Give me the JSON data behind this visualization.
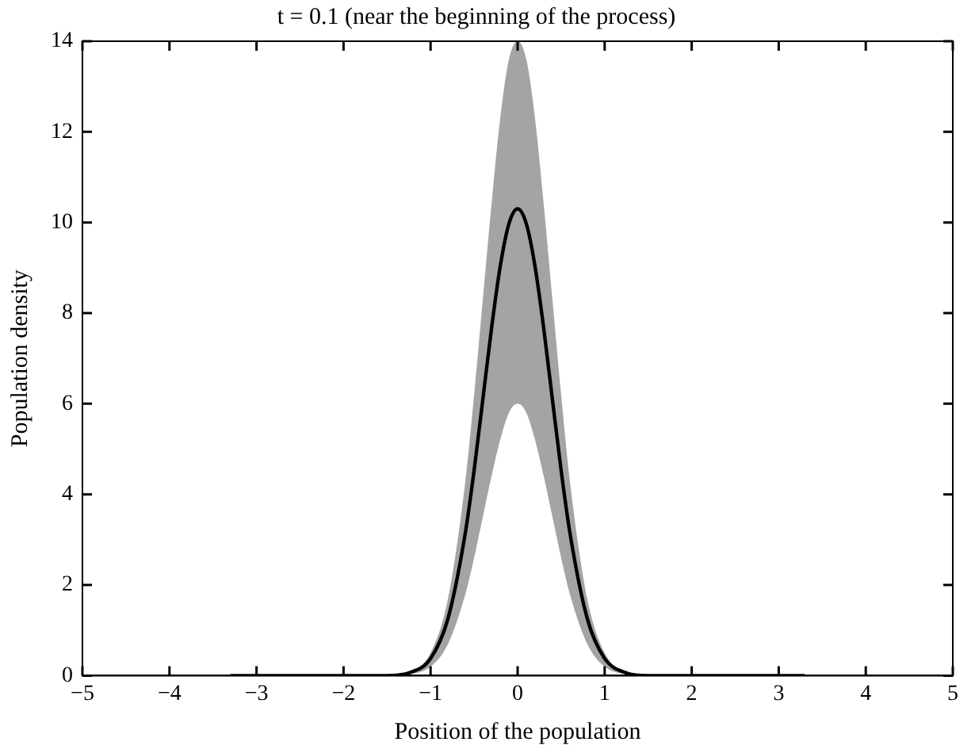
{
  "chart_data": {
    "type": "line",
    "title": "t = 0.1 (near the beginning of the process)",
    "xlabel": "Position of the population",
    "ylabel": "Population density",
    "xlim": [
      -5,
      5
    ],
    "ylim": [
      0,
      14
    ],
    "xticks": [
      {
        "value": -5,
        "label": "−5"
      },
      {
        "value": -4,
        "label": "−4"
      },
      {
        "value": -3,
        "label": "−3"
      },
      {
        "value": -2,
        "label": "−2"
      },
      {
        "value": -1,
        "label": "−1"
      },
      0,
      1,
      2,
      3,
      4,
      5
    ],
    "yticks": [
      0,
      2,
      4,
      6,
      8,
      10,
      12,
      14
    ],
    "grid": false,
    "marker": "none",
    "line_style": "solid",
    "series": [
      {
        "color": "#000000",
        "x": [
          -3.3,
          -2,
          -1.5,
          -1.25,
          -1,
          -0.8,
          -0.6,
          -0.5,
          -0.4,
          -0.3,
          -0.2,
          -0.1,
          0,
          0.1,
          0.2,
          0.3,
          0.4,
          0.5,
          0.6,
          0.8,
          1,
          1.25,
          1.5,
          2,
          3.3
        ],
        "values": [
          0,
          0,
          0,
          0.06,
          0.38,
          1.26,
          3.16,
          4.53,
          6.09,
          7.66,
          9.03,
          9.97,
          10.3,
          9.97,
          9.03,
          7.66,
          6.09,
          4.53,
          3.16,
          1.26,
          0.38,
          0.06,
          0,
          0,
          0
        ],
        "upper": [
          0,
          0,
          0,
          0.08,
          0.5,
          1.7,
          4.3,
          6.2,
          8.3,
          10.4,
          12.3,
          13.6,
          14,
          13.6,
          12.3,
          10.4,
          8.3,
          6.2,
          4.3,
          1.7,
          0.5,
          0.08,
          0,
          0,
          0
        ],
        "lower": [
          0,
          0,
          0,
          0.03,
          0.2,
          0.7,
          1.8,
          2.6,
          3.5,
          4.4,
          5.2,
          5.8,
          6,
          5.8,
          5.2,
          4.4,
          3.5,
          2.6,
          1.8,
          0.7,
          0.2,
          0.03,
          0,
          0,
          0
        ]
      }
    ]
  }
}
